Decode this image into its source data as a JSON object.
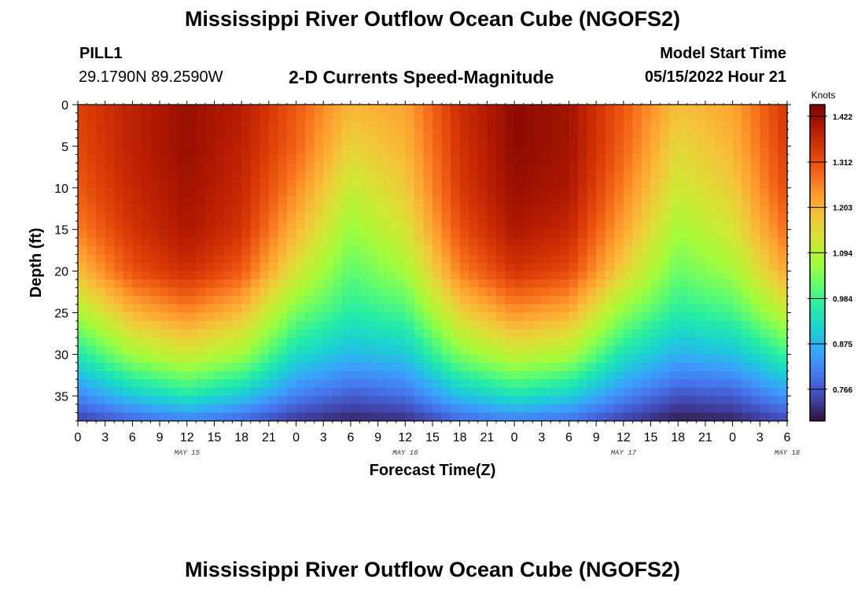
{
  "header": {
    "title": "Mississippi River Outflow Ocean Cube (NGOFS2)",
    "station_name": "PILL1",
    "station_coords": "29.1790N  89.2590W",
    "subtitle": "2-D Currents Speed-Magnitude",
    "start_label": "Model Start Time",
    "start_value": "05/15/2022 Hour 21"
  },
  "footer": {
    "title": "Mississippi River Outflow Ocean Cube (NGOFS2)"
  },
  "chart_data": {
    "type": "heatmap",
    "title": "2-D Currents Speed-Magnitude",
    "xlabel": "Forecast Time(Z)",
    "ylabel": "Depth (ft)",
    "colorbar_label": "Knots",
    "x_start": "2022-05-15T00:00Z",
    "x_end": "2022-05-18T06:00Z",
    "x_tick_labels": [
      "0",
      "3",
      "6",
      "9",
      "12",
      "15",
      "18",
      "21",
      "0",
      "3",
      "6",
      "9",
      "12",
      "15",
      "18",
      "21",
      "0",
      "3",
      "6",
      "9",
      "12",
      "15",
      "18",
      "21",
      "0",
      "3",
      "6"
    ],
    "date_labels": [
      {
        "text": "MAY 15",
        "hour": 12
      },
      {
        "text": "MAY 16",
        "hour": 36
      },
      {
        "text": "MAY 17",
        "hour": 60
      },
      {
        "text": "MAY 18",
        "hour": 78
      }
    ],
    "ylim": [
      0,
      38
    ],
    "y_inverted": true,
    "y_ticks": [
      0,
      5,
      10,
      15,
      20,
      25,
      30,
      35
    ],
    "colorbar_ticks": [
      "1.422",
      "1.312",
      "1.203",
      "1.094",
      "0.984",
      "0.875",
      "0.766"
    ],
    "color_range": [
      0.69,
      1.45
    ],
    "colormap": [
      "#30123b",
      "#4145ab",
      "#4675ed",
      "#39a2fc",
      "#1bcfd4",
      "#24eca6",
      "#61fc6c",
      "#a4fc3b",
      "#d1e834",
      "#f3c63a",
      "#fe9b2d",
      "#f36315",
      "#d93806",
      "#b11901",
      "#7a0403"
    ],
    "depth_grid_ft": [
      0,
      5,
      10,
      15,
      20,
      25,
      30,
      35,
      38
    ],
    "time_grid_hours": [
      0,
      6,
      12,
      18,
      24,
      30,
      36,
      42,
      48,
      54,
      60,
      66,
      72,
      78
    ],
    "speed_knots": [
      [
        1.33,
        1.38,
        1.42,
        1.39,
        1.3,
        1.2,
        1.22,
        1.36,
        1.43,
        1.41,
        1.3,
        1.19,
        1.22,
        1.35
      ],
      [
        1.32,
        1.38,
        1.42,
        1.38,
        1.29,
        1.16,
        1.2,
        1.35,
        1.43,
        1.41,
        1.29,
        1.15,
        1.2,
        1.34
      ],
      [
        1.3,
        1.37,
        1.41,
        1.37,
        1.25,
        1.11,
        1.17,
        1.34,
        1.42,
        1.4,
        1.26,
        1.12,
        1.17,
        1.32
      ],
      [
        1.26,
        1.35,
        1.4,
        1.35,
        1.2,
        1.06,
        1.13,
        1.31,
        1.4,
        1.37,
        1.22,
        1.07,
        1.13,
        1.28
      ],
      [
        1.19,
        1.31,
        1.36,
        1.3,
        1.13,
        1.01,
        1.07,
        1.26,
        1.35,
        1.32,
        1.16,
        1.02,
        1.07,
        1.22
      ],
      [
        1.08,
        1.2,
        1.25,
        1.19,
        1.03,
        0.96,
        0.99,
        1.16,
        1.24,
        1.21,
        1.05,
        0.96,
        0.99,
        1.11
      ],
      [
        0.95,
        1.07,
        1.12,
        1.07,
        0.93,
        0.88,
        0.9,
        1.04,
        1.11,
        1.08,
        0.94,
        0.87,
        0.89,
        0.98
      ],
      [
        0.82,
        0.9,
        0.95,
        0.9,
        0.81,
        0.77,
        0.79,
        0.89,
        0.94,
        0.91,
        0.82,
        0.76,
        0.77,
        0.84
      ],
      [
        0.74,
        0.78,
        0.81,
        0.78,
        0.73,
        0.71,
        0.72,
        0.78,
        0.81,
        0.79,
        0.74,
        0.7,
        0.71,
        0.75
      ]
    ]
  }
}
